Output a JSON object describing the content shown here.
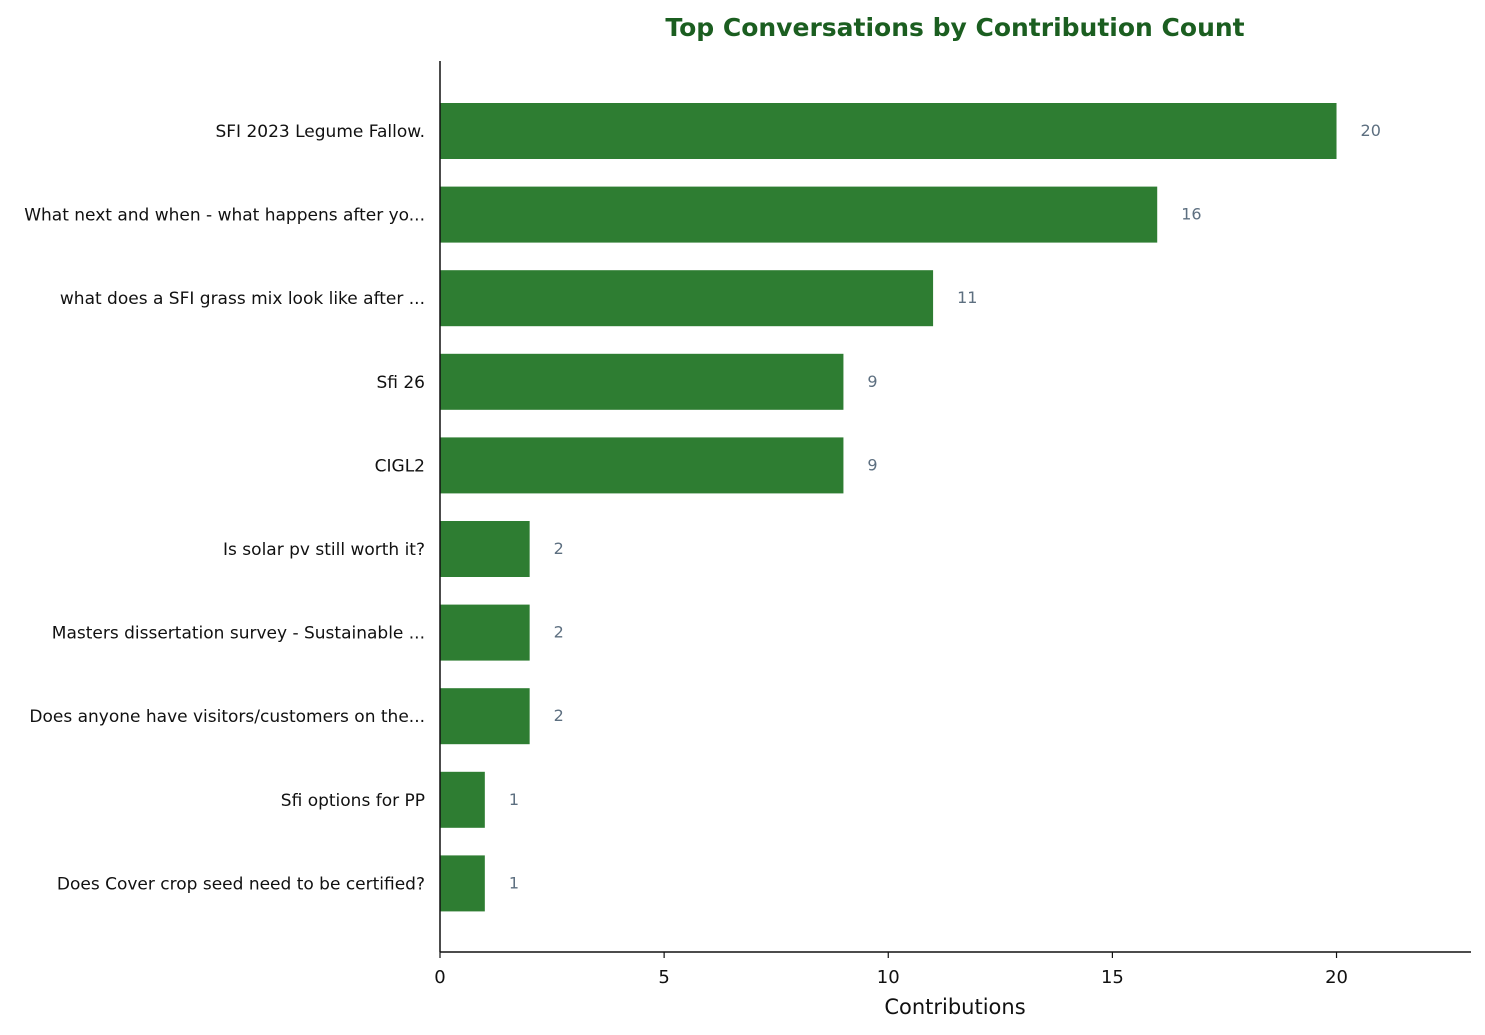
{
  "chart_data": {
    "type": "bar",
    "orientation": "horizontal",
    "title": "Top Conversations by Contribution Count",
    "xlabel": "Contributions",
    "ylabel": "",
    "categories": [
      "SFI 2023 Legume Fallow.",
      "What next and when - what happens after yo...",
      "what does a SFI grass mix look like after ...",
      "Sfi 26",
      "CIGL2",
      "Is solar pv still worth it?",
      "Masters dissertation survey - Sustainable ...",
      "Does anyone have visitors/customers on the...",
      "Sfi options for PP",
      "Does Cover crop seed need to be certified?"
    ],
    "values": [
      20,
      16,
      11,
      9,
      9,
      2,
      2,
      2,
      1,
      1
    ],
    "value_labels": [
      "20",
      "16",
      "11",
      "9",
      "9",
      "2",
      "2",
      "2",
      "1",
      "1"
    ],
    "xlim": [
      0,
      23
    ],
    "xticks": [
      0,
      5,
      10,
      15,
      20
    ],
    "xtick_labels": [
      "0",
      "5",
      "10",
      "15",
      "20"
    ],
    "grid": false,
    "colors": {
      "bar": "#2e7d32",
      "title": "#1b5e20",
      "value_label": "#5d6f80"
    }
  }
}
